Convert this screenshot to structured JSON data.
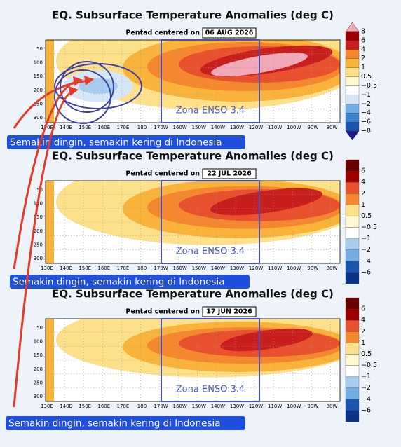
{
  "panels": [
    {
      "title": "EQ. Subsurface Temperature Anomalies (deg C)",
      "subtitle": "Pentad centered on",
      "date": "06 AUG 2026",
      "y_labels": [
        "50",
        "100",
        "150",
        "200",
        "250",
        "300"
      ],
      "x_labels": [
        "130E",
        "140E",
        "150E",
        "160E",
        "170E",
        "180",
        "170W",
        "160W",
        "150W",
        "140W",
        "130W",
        "120W",
        "110W",
        "100W",
        "90W",
        "80W"
      ],
      "colorbar_labels": [
        "8",
        "6",
        "4",
        "2",
        "1",
        "0.5",
        "−0.5",
        "−1",
        "−2",
        "−4",
        "−6",
        "−8"
      ],
      "zone_label": "Zona ENSO 3.4",
      "caption": "Semakin dingin, semakin kering di Indonesia"
    },
    {
      "title": "EQ. Subsurface Temperature Anomalies (deg C)",
      "subtitle": "Pentad centered on",
      "date": "22 JUL 2026",
      "y_labels": [
        "50",
        "100",
        "150",
        "200",
        "250",
        "300"
      ],
      "x_labels": [
        "130E",
        "140E",
        "150E",
        "160E",
        "170E",
        "180",
        "170W",
        "160W",
        "150W",
        "140W",
        "130W",
        "120W",
        "110W",
        "100W",
        "90W",
        "80W"
      ],
      "colorbar_labels": [
        "6",
        "4",
        "2",
        "1",
        "0.5",
        "−0.5",
        "−1",
        "−2",
        "−4",
        "−6"
      ],
      "zone_label": "Zona ENSO 3.4",
      "caption": "Semakin dingin, semakin kering di Indonesia"
    },
    {
      "title": "EQ. Subsurface Temperature Anomalies (deg C)",
      "subtitle": "Pentad centered on",
      "date": "17 JUN 2026",
      "y_labels": [
        "50",
        "100",
        "150",
        "200",
        "250",
        "300"
      ],
      "x_labels": [
        "130E",
        "140E",
        "150E",
        "160E",
        "170E",
        "180",
        "170W",
        "160W",
        "150W",
        "140W",
        "130W",
        "120W",
        "110W",
        "100W",
        "90W",
        "80W"
      ],
      "colorbar_labels": [
        "6",
        "4",
        "2",
        "1",
        "0.5",
        "−0.5",
        "−1",
        "−2",
        "−4",
        "−6"
      ],
      "zone_label": "Zona ENSO 3.4",
      "caption": "Semakin dingin, semakin kering di Indonesia"
    }
  ]
}
